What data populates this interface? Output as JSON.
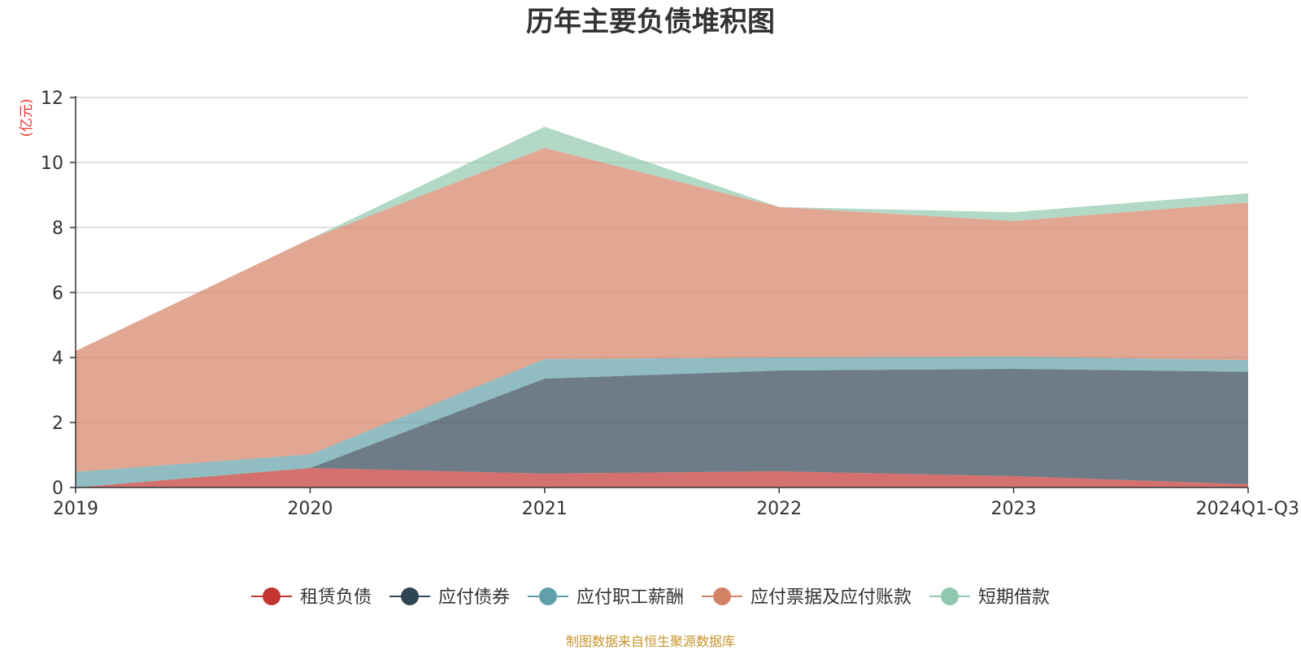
{
  "chart_data": {
    "type": "area",
    "stacked": true,
    "title": "历年主要负债堆积图",
    "unit": "(亿元)",
    "source": "制图数据来自恒生聚源数据库",
    "categories": [
      "2019",
      "2020",
      "2021",
      "2022",
      "2023",
      "2024Q1-Q3"
    ],
    "ylim": [
      0,
      12
    ],
    "yticks": [
      "0",
      "2",
      "4",
      "6",
      "8",
      "10",
      "12"
    ],
    "grid": true,
    "legend_position": "bottom",
    "series": [
      {
        "name": "租赁负债",
        "color": "#c23531",
        "values": [
          0.0,
          0.6,
          0.43,
          0.5,
          0.35,
          0.1
        ]
      },
      {
        "name": "应付债券",
        "color": "#2f4554",
        "values": [
          0.0,
          0.0,
          2.92,
          3.1,
          3.3,
          3.46
        ]
      },
      {
        "name": "应付职工薪酬",
        "color": "#61a0a8",
        "values": [
          0.48,
          0.42,
          0.6,
          0.4,
          0.38,
          0.36
        ]
      },
      {
        "name": "应付票据及应付账款",
        "color": "#d48265",
        "values": [
          3.72,
          6.63,
          6.5,
          4.63,
          4.17,
          4.85
        ]
      },
      {
        "name": "短期借款",
        "color": "#91c7ae",
        "values": [
          0.0,
          0.0,
          0.65,
          0.0,
          0.27,
          0.28
        ]
      }
    ]
  }
}
